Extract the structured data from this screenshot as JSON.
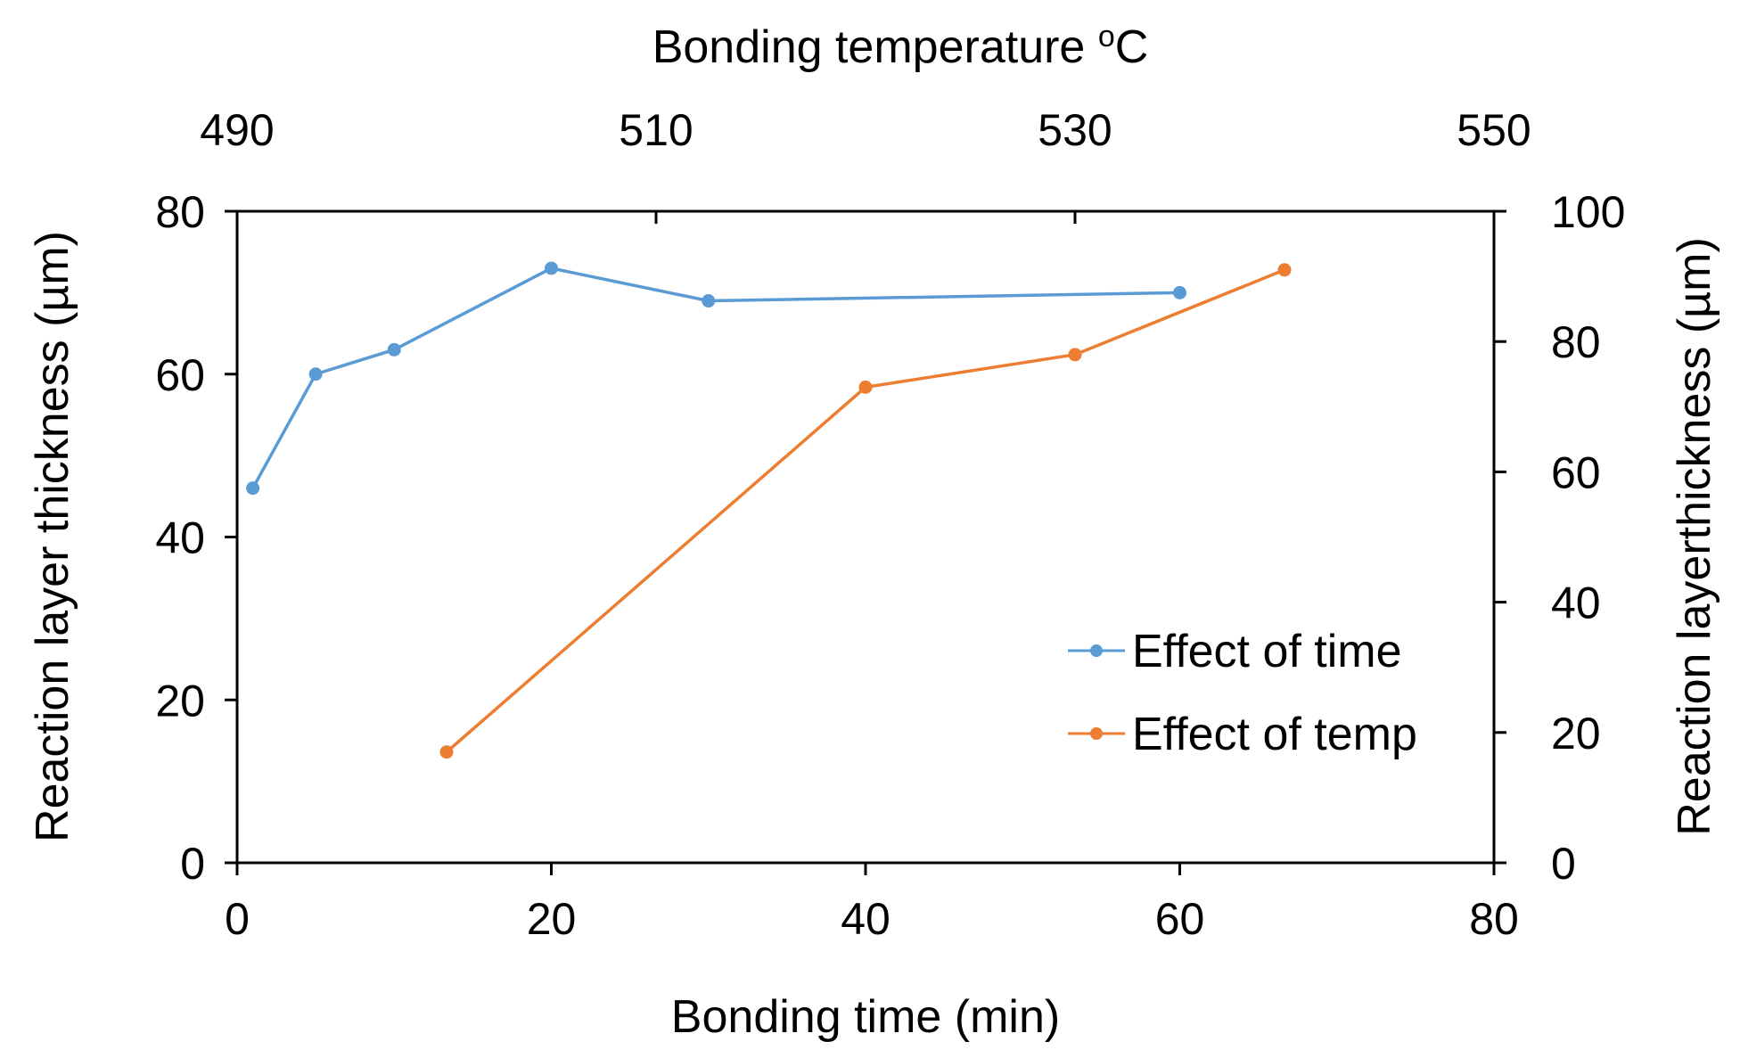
{
  "chart_data": {
    "type": "line",
    "xlabel_bottom": "Bonding time (min)",
    "xlabel_top": "Bonding temperature",
    "xlabel_top_unit_sup": "o",
    "xlabel_top_unit": "C",
    "ylabel_left": "Reaction layer thickness (µm)",
    "ylabel_right": "Reaction layerthickness (µm)",
    "x_bottom": {
      "min": 0,
      "max": 80,
      "ticks": [
        0,
        20,
        40,
        60,
        80
      ]
    },
    "x_top": {
      "min": 490,
      "max": 550,
      "ticks": [
        490,
        510,
        530,
        550
      ]
    },
    "y_left": {
      "min": 0,
      "max": 80,
      "ticks": [
        0,
        20,
        40,
        60,
        80
      ]
    },
    "y_right": {
      "min": 0,
      "max": 100,
      "ticks": [
        0,
        20,
        40,
        60,
        80,
        100
      ]
    },
    "series": [
      {
        "name": "Effect of time",
        "color": "#5b9bd5",
        "x_axis": "bottom",
        "y_axis": "left",
        "x": [
          1,
          5,
          10,
          20,
          30,
          60
        ],
        "y": [
          46,
          60,
          63,
          73,
          69,
          70
        ]
      },
      {
        "name": "Effect of temp",
        "color": "#ed7d31",
        "x_axis": "top",
        "y_axis": "right",
        "x": [
          500,
          520,
          530,
          540
        ],
        "y": [
          17,
          73,
          78,
          91
        ]
      }
    ],
    "legend": {
      "position": "lower-right",
      "entries": [
        "Effect of time",
        "Effect of temp"
      ]
    },
    "grid": false
  }
}
